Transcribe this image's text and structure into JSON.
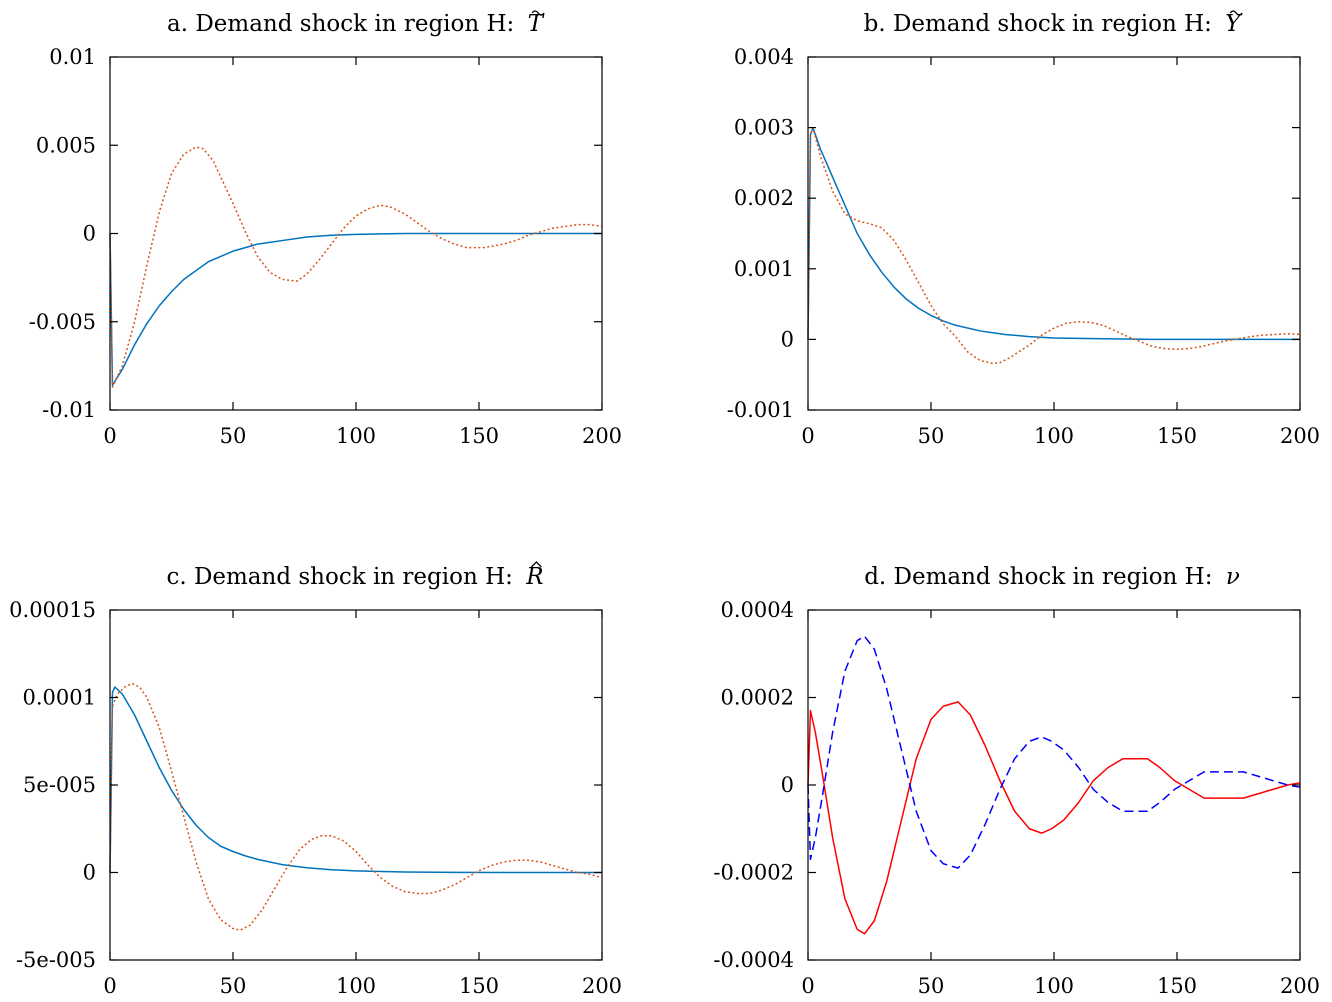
{
  "chart_data": [
    {
      "type": "line",
      "title": "a. Demand shock in region H:",
      "title_symbol": "T",
      "title_accent": "tilde",
      "ylim": [
        -0.01,
        0.01
      ],
      "xlim": [
        0,
        200
      ],
      "yticks": [
        -0.01,
        -0.005,
        0,
        0.005,
        0.01
      ],
      "ytick_labels": [
        "-0.01",
        "-0.005",
        "0",
        "0.005",
        "0.01"
      ],
      "xticks": [
        0,
        50,
        100,
        150,
        200
      ],
      "xtick_labels": [
        "0",
        "50",
        "100",
        "150",
        "200"
      ],
      "grid": false,
      "series": [
        {
          "color": "#0072BD",
          "dash": "solid",
          "x": [
            0,
            1,
            5,
            10,
            15,
            20,
            25,
            30,
            35,
            40,
            45,
            50,
            55,
            60,
            70,
            80,
            90,
            100,
            120,
            140,
            160,
            180,
            200
          ],
          "y": [
            0,
            -0.0086,
            -0.0077,
            -0.0063,
            -0.0051,
            -0.0041,
            -0.0033,
            -0.0026,
            -0.0021,
            -0.0016,
            -0.0013,
            -0.001,
            -0.0008,
            -0.0006,
            -0.0004,
            -0.0002,
            -0.0001,
            -5e-05,
            0,
            0,
            0,
            0,
            0
          ]
        },
        {
          "color": "#D95319",
          "dash": "dotted",
          "x": [
            0,
            1,
            5,
            10,
            15,
            20,
            25,
            30,
            35,
            38,
            42,
            46,
            50,
            55,
            60,
            65,
            70,
            76,
            80,
            85,
            90,
            95,
            100,
            105,
            110,
            114,
            120,
            125,
            130,
            135,
            140,
            145,
            152,
            160,
            165,
            170,
            175,
            180,
            185,
            190,
            195,
            200
          ],
          "y": [
            0,
            -0.0087,
            -0.0075,
            -0.005,
            -0.0018,
            0.0012,
            0.0034,
            0.0045,
            0.0049,
            0.0048,
            0.0041,
            0.0029,
            0.0017,
            0.0001,
            -0.0013,
            -0.0022,
            -0.0026,
            -0.0027,
            -0.0023,
            -0.0015,
            -0.0006,
            0.0003,
            0.001,
            0.0014,
            0.0016,
            0.0015,
            0.0011,
            0.0006,
            0.0001,
            -0.0003,
            -0.0006,
            -0.0008,
            -0.0008,
            -0.0006,
            -0.0004,
            -0.0001,
            0.0001,
            0.0003,
            0.0004,
            0.0005,
            0.0005,
            0.0004
          ]
        }
      ]
    },
    {
      "type": "line",
      "title": "b. Demand shock in region H:",
      "title_symbol": "Y",
      "title_accent": "tilde",
      "ylim": [
        -0.001,
        0.004
      ],
      "xlim": [
        0,
        200
      ],
      "yticks": [
        -0.001,
        0,
        0.001,
        0.002,
        0.003,
        0.004
      ],
      "ytick_labels": [
        "-0.001",
        "0",
        "0.001",
        "0.002",
        "0.003",
        "0.004"
      ],
      "xticks": [
        0,
        50,
        100,
        150,
        200
      ],
      "xtick_labels": [
        "0",
        "50",
        "100",
        "150",
        "200"
      ],
      "grid": false,
      "series": [
        {
          "color": "#0072BD",
          "dash": "solid",
          "x": [
            0,
            1,
            2,
            5,
            10,
            15,
            20,
            25,
            30,
            35,
            40,
            45,
            50,
            55,
            60,
            70,
            80,
            90,
            100,
            120,
            140,
            160,
            180,
            200
          ],
          "y": [
            0,
            0.0029,
            0.003,
            0.0027,
            0.0023,
            0.0019,
            0.0015,
            0.0012,
            0.00095,
            0.00074,
            0.00057,
            0.00044,
            0.00034,
            0.00026,
            0.0002,
            0.00012,
            7e-05,
            4e-05,
            2e-05,
            1e-05,
            0,
            0,
            0,
            0
          ]
        },
        {
          "color": "#D95319",
          "dash": "dotted",
          "x": [
            0,
            1,
            2,
            5,
            10,
            15,
            20,
            25,
            30,
            35,
            40,
            45,
            50,
            55,
            60,
            65,
            70,
            75,
            78,
            82,
            86,
            90,
            95,
            100,
            105,
            110,
            115,
            120,
            125,
            130,
            135,
            140,
            145,
            150,
            155,
            160,
            165,
            170,
            175,
            180,
            185,
            190,
            195,
            200
          ],
          "y": [
            0,
            0.0029,
            0.003,
            0.0026,
            0.0021,
            0.00178,
            0.00168,
            0.00164,
            0.00158,
            0.0014,
            0.00112,
            0.0008,
            0.00048,
            0.00022,
            4e-05,
            -0.00018,
            -0.0003,
            -0.00034,
            -0.00033,
            -0.00026,
            -0.00017,
            -8e-05,
            6e-05,
            0.00016,
            0.00023,
            0.00025,
            0.00024,
            0.0002,
            0.00012,
            4e-05,
            -3e-05,
            -0.0001,
            -0.00013,
            -0.00014,
            -0.00013,
            -0.0001,
            -6e-05,
            -2e-05,
            1e-05,
            4e-05,
            6e-05,
            7e-05,
            8e-05,
            7e-05
          ]
        }
      ]
    },
    {
      "type": "line",
      "title": "c. Demand shock in region H:",
      "title_symbol": "R",
      "title_accent": "hat",
      "ylim": [
        -5e-05,
        0.00015
      ],
      "xlim": [
        0,
        200
      ],
      "yticks": [
        -5e-05,
        0,
        5e-05,
        0.0001,
        0.00015
      ],
      "ytick_labels": [
        "-5e-005",
        "0",
        "5e-005",
        "0.0001",
        "0.00015"
      ],
      "xticks": [
        0,
        50,
        100,
        150,
        200
      ],
      "xtick_labels": [
        "0",
        "50",
        "100",
        "150",
        "200"
      ],
      "grid": false,
      "series": [
        {
          "color": "#0072BD",
          "dash": "solid",
          "x": [
            0,
            1,
            2,
            5,
            10,
            15,
            20,
            25,
            30,
            35,
            40,
            45,
            50,
            55,
            60,
            70,
            80,
            90,
            100,
            120,
            140,
            160,
            180,
            200
          ],
          "y": [
            0,
            0.000103,
            0.000106,
            0.000102,
            9e-05,
            7.5e-05,
            6e-05,
            4.7e-05,
            3.6e-05,
            2.7e-05,
            2e-05,
            1.5e-05,
            1.2e-05,
            9.5e-06,
            7.5e-06,
            4.5e-06,
            2.7e-06,
            1.6e-06,
            9e-07,
            3e-07,
            1e-07,
            0,
            0,
            0
          ]
        },
        {
          "color": "#D95319",
          "dash": "dotted",
          "x": [
            0,
            1,
            3,
            6,
            9,
            12,
            15,
            20,
            25,
            30,
            35,
            40,
            45,
            50,
            53,
            57,
            62,
            67,
            72,
            77,
            82,
            86,
            90,
            95,
            100,
            105,
            110,
            115,
            120,
            125,
            130,
            135,
            140,
            145,
            150,
            155,
            160,
            165,
            170,
            175,
            180,
            185,
            190,
            195,
            200
          ],
          "y": [
            0,
            9.5e-05,
            0.000102,
            0.000106,
            0.000108,
            0.000106,
            0.0001,
            8.3e-05,
            5.8e-05,
            3.2e-05,
            6e-06,
            -1.5e-05,
            -2.7e-05,
            -3.2e-05,
            -3.3e-05,
            -3e-05,
            -2.1e-05,
            -9e-06,
            3e-06,
            1.3e-05,
            1.9e-05,
            2.1e-05,
            2.1e-05,
            1.8e-05,
            1.2e-05,
            4e-06,
            -3e-06,
            -8e-06,
            -1.1e-05,
            -1.2e-05,
            -1.2e-05,
            -1e-05,
            -7e-06,
            -3e-06,
            1e-06,
            4e-06,
            6e-06,
            7e-06,
            7e-06,
            6e-06,
            4e-06,
            2e-06,
            0,
            -1e-06,
            -3e-06
          ]
        }
      ]
    },
    {
      "type": "line",
      "title": "d. Demand shock in region H:",
      "title_symbol": "ν",
      "title_accent": "",
      "ylim": [
        -0.0004,
        0.0004
      ],
      "xlim": [
        0,
        200
      ],
      "yticks": [
        -0.0004,
        -0.0002,
        0,
        0.0002,
        0.0004
      ],
      "ytick_labels": [
        "-0.0004",
        "-0.0002",
        "0",
        "0.0002",
        "0.0004"
      ],
      "xticks": [
        0,
        50,
        100,
        150,
        200
      ],
      "xtick_labels": [
        "0",
        "50",
        "100",
        "150",
        "200"
      ],
      "grid": false,
      "series": [
        {
          "color": "#FF0000",
          "dash": "solid",
          "x": [
            0,
            1,
            3,
            6,
            10,
            15,
            20,
            23,
            27,
            32,
            38,
            44,
            50,
            55,
            61,
            66,
            72,
            78,
            84,
            90,
            95,
            99,
            104,
            110,
            116,
            122,
            128,
            133,
            138,
            143,
            149,
            155,
            161,
            167,
            172,
            177,
            183,
            189,
            195,
            200
          ],
          "y": [
            0,
            0.00017,
            0.00012,
            2e-05,
            -0.00012,
            -0.00026,
            -0.00033,
            -0.00034,
            -0.00031,
            -0.00022,
            -8e-05,
            6e-05,
            0.00015,
            0.00018,
            0.00019,
            0.00016,
            9e-05,
            1e-05,
            -6e-05,
            -0.0001,
            -0.00011,
            -0.0001,
            -8e-05,
            -4e-05,
            1e-05,
            4e-05,
            6e-05,
            6e-05,
            6e-05,
            4e-05,
            1e-05,
            -1e-05,
            -3e-05,
            -3e-05,
            -3e-05,
            -3e-05,
            -2e-05,
            -1e-05,
            0,
            5e-06
          ]
        },
        {
          "color": "#0000FF",
          "dash": "dashed",
          "x": [
            0,
            1,
            3,
            6,
            10,
            15,
            20,
            23,
            27,
            32,
            38,
            44,
            50,
            55,
            61,
            66,
            72,
            78,
            84,
            90,
            95,
            99,
            104,
            110,
            116,
            122,
            128,
            133,
            138,
            143,
            149,
            155,
            161,
            167,
            172,
            177,
            183,
            189,
            195,
            200
          ],
          "y": [
            0,
            -0.00017,
            -0.00012,
            -2e-05,
            0.00012,
            0.00026,
            0.00033,
            0.00034,
            0.00031,
            0.00022,
            8e-05,
            -6e-05,
            -0.00015,
            -0.00018,
            -0.00019,
            -0.00016,
            -9e-05,
            -1e-05,
            6e-05,
            0.0001,
            0.00011,
            0.0001,
            8e-05,
            4e-05,
            -1e-05,
            -4e-05,
            -6e-05,
            -6e-05,
            -6e-05,
            -4e-05,
            -1e-05,
            1e-05,
            3e-05,
            3e-05,
            3e-05,
            3e-05,
            2e-05,
            1e-05,
            0,
            -5e-06
          ]
        }
      ]
    }
  ]
}
